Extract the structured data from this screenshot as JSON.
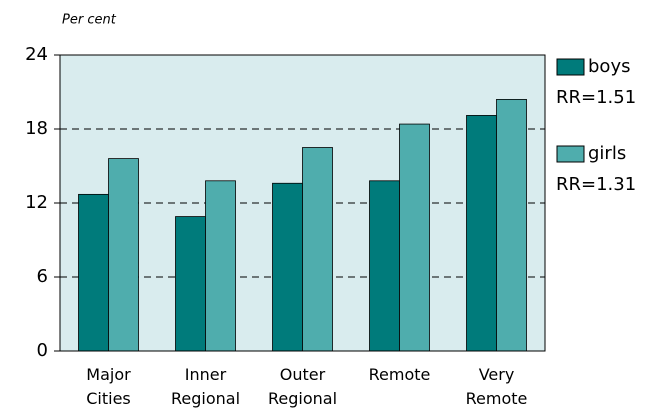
{
  "chart_data": {
    "type": "bar",
    "y_label": "Per cent",
    "categories": [
      "Major Cities",
      "Inner Regional",
      "Outer Regional",
      "Remote",
      "Very Remote"
    ],
    "series": [
      {
        "name": "boys",
        "color": "#007b7b",
        "rr_label": "RR=1.51",
        "values": [
          12.7,
          10.9,
          13.6,
          13.8,
          19.1
        ]
      },
      {
        "name": "girls",
        "color": "#4fadad",
        "rr_label": "RR=1.31",
        "values": [
          15.6,
          13.8,
          16.5,
          18.4,
          20.4
        ]
      }
    ],
    "ylim": [
      0,
      24
    ],
    "yticks": [
      0,
      6,
      12,
      18,
      24
    ],
    "grid": true,
    "background": "#d9ecee"
  }
}
